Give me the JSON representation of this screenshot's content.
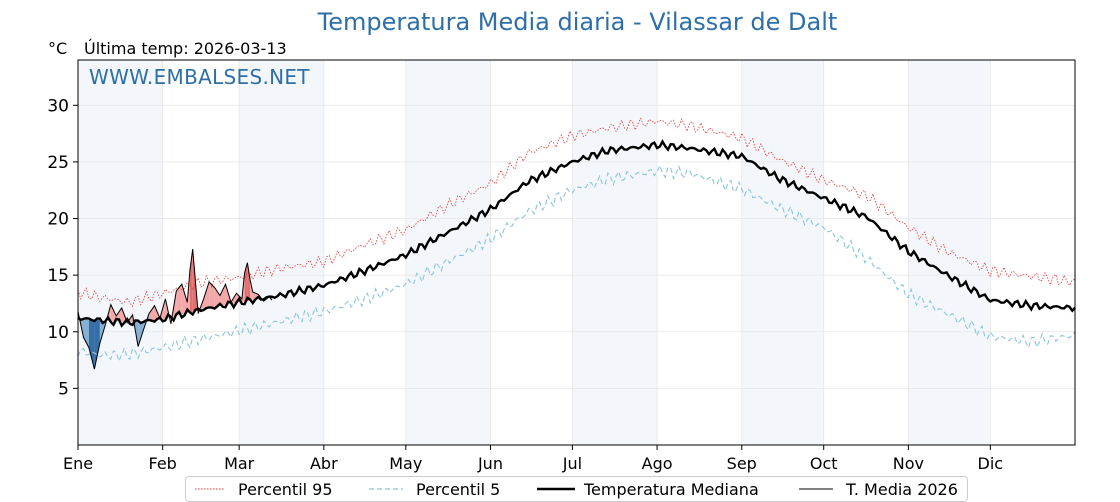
{
  "header": {
    "title": "Temperatura Media diaria - Vilassar de Dalt",
    "unit_label": "°C",
    "last_temp_label": "Última temp: 2026-03-13",
    "watermark": "WWW.EMBALSES.NET"
  },
  "colors": {
    "p95": "#e8322a",
    "p5": "#8cc4de",
    "median": "#000000",
    "current": "#000000",
    "above_fill": "#f2a0a0",
    "above_fill_strong": "#e06060",
    "below_fill": "#7aa9cf",
    "below_fill_strong": "#1f5f9e",
    "month_band": "#f3f7fb",
    "title": "#2e6fa8"
  },
  "chart_data": {
    "type": "line",
    "title": "Temperatura Media diaria - Vilassar de Dalt",
    "ylabel": "°C",
    "xlabel": "",
    "ylim": [
      0,
      34
    ],
    "xlim": [
      1,
      366
    ],
    "y_ticks": [
      5,
      10,
      15,
      20,
      25,
      30
    ],
    "grid": true,
    "months": [
      {
        "label": "Ene",
        "day": 1
      },
      {
        "label": "Feb",
        "day": 32
      },
      {
        "label": "Mar",
        "day": 60
      },
      {
        "label": "Abr",
        "day": 91
      },
      {
        "label": "May",
        "day": 121
      },
      {
        "label": "Jun",
        "day": 152
      },
      {
        "label": "Jul",
        "day": 182
      },
      {
        "label": "Ago",
        "day": 213
      },
      {
        "label": "Sep",
        "day": 244
      },
      {
        "label": "Oct",
        "day": 274
      },
      {
        "label": "Nov",
        "day": 305
      },
      {
        "label": "Dic",
        "day": 335
      }
    ],
    "series": [
      {
        "name": "Percentil 95",
        "key": "p95",
        "style": "dotted",
        "x": [
          1,
          10,
          20,
          32,
          45,
          60,
          75,
          91,
          105,
          121,
          135,
          152,
          166,
          182,
          195,
          213,
          225,
          244,
          258,
          274,
          290,
          305,
          320,
          335,
          350,
          366
        ],
        "y": [
          13.5,
          13.0,
          12.6,
          13.4,
          14.3,
          14.8,
          15.6,
          16.2,
          17.6,
          19.0,
          21.0,
          23.1,
          25.8,
          27.3,
          28.0,
          28.6,
          28.2,
          27.1,
          25.2,
          23.4,
          22.0,
          19.2,
          17.0,
          15.4,
          14.9,
          14.4
        ]
      },
      {
        "name": "Percentil 5",
        "key": "p5",
        "style": "dashed",
        "x": [
          1,
          10,
          20,
          32,
          45,
          60,
          75,
          91,
          105,
          121,
          135,
          152,
          166,
          182,
          195,
          213,
          225,
          244,
          258,
          274,
          290,
          305,
          320,
          335,
          350,
          366
        ],
        "y": [
          8.3,
          7.9,
          8.0,
          8.6,
          9.3,
          10.1,
          10.9,
          11.8,
          12.8,
          14.2,
          16.0,
          18.2,
          20.6,
          22.5,
          23.5,
          24.2,
          24.0,
          22.6,
          20.9,
          19.2,
          16.4,
          13.3,
          11.5,
          9.6,
          9.1,
          9.7
        ]
      },
      {
        "name": "Temperatura Mediana",
        "key": "median",
        "style": "solid-thick",
        "x": [
          1,
          10,
          20,
          32,
          45,
          60,
          75,
          91,
          105,
          121,
          135,
          152,
          166,
          182,
          195,
          213,
          225,
          244,
          258,
          274,
          290,
          305,
          320,
          335,
          350,
          366
        ],
        "y": [
          11.2,
          11.0,
          10.8,
          11.1,
          11.9,
          12.6,
          13.2,
          14.1,
          15.3,
          16.8,
          18.6,
          20.8,
          23.3,
          25.0,
          26.0,
          26.5,
          26.2,
          25.5,
          23.5,
          21.8,
          20.1,
          17.1,
          14.9,
          12.8,
          12.3,
          12.1
        ]
      },
      {
        "name": "T. Media 2026",
        "key": "current",
        "style": "solid-thin",
        "x": [
          1,
          3,
          5,
          7,
          9,
          11,
          13,
          15,
          17,
          19,
          21,
          23,
          25,
          27,
          29,
          31,
          33,
          35,
          37,
          39,
          41,
          42,
          43,
          45,
          47,
          49,
          51,
          53,
          55,
          57,
          59,
          61,
          62,
          63,
          64,
          65,
          67,
          69,
          71,
          72
        ],
        "y": [
          11.8,
          9.5,
          8.6,
          6.7,
          9.0,
          10.6,
          12.4,
          11.4,
          12.1,
          10.8,
          11.5,
          8.7,
          10.2,
          11.6,
          12.3,
          11.2,
          12.9,
          10.7,
          13.6,
          14.2,
          12.6,
          15.5,
          17.3,
          11.6,
          12.9,
          14.4,
          13.9,
          13.2,
          14.2,
          12.6,
          13.4,
          12.9,
          15.2,
          16.1,
          14.6,
          13.5,
          13.3,
          12.7,
          13.1,
          12.8
        ]
      }
    ]
  },
  "legend": {
    "p95": "Percentil 95",
    "p5": "Percentil 5",
    "median": "Temperatura Mediana",
    "current": "T. Media 2026"
  }
}
